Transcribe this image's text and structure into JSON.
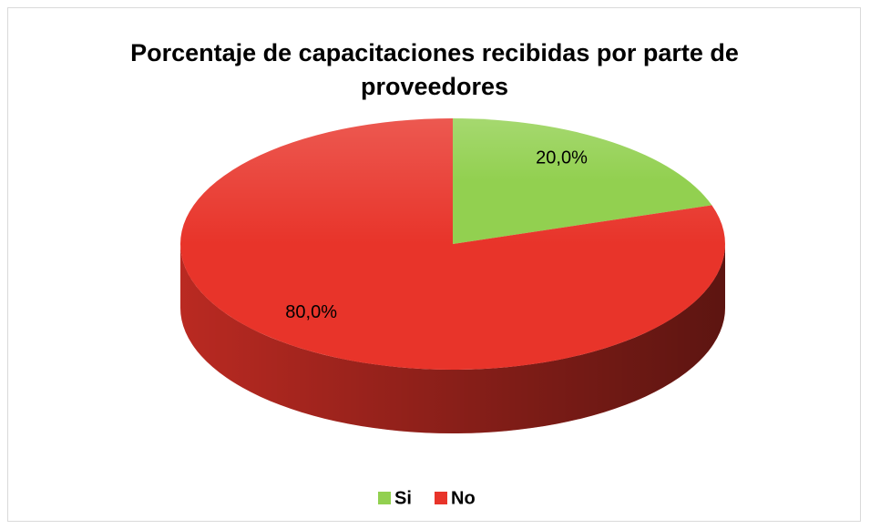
{
  "chart_data": {
    "type": "pie3d",
    "title": "Porcentaje de capacitaciones recibidas por parte de proveedores",
    "categories": [
      "Si",
      "No"
    ],
    "values": [
      20,
      80
    ],
    "value_labels": [
      "20,0%",
      "80,0%"
    ],
    "colors": [
      "#92d050",
      "#e8342a"
    ],
    "legend": "bottom"
  }
}
